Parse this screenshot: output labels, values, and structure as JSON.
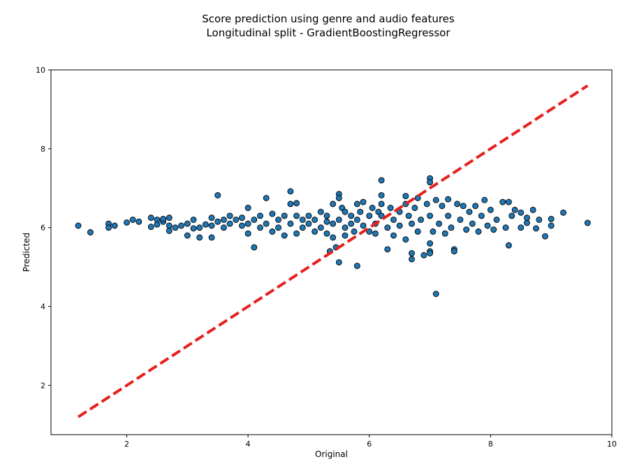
{
  "chart_data": {
    "type": "scatter",
    "title": "Score prediction using genre and audio features",
    "subtitle": "Longitudinal split - GradientBoostingRegressor",
    "xlabel": "Original",
    "ylabel": "Predicted",
    "xlim": [
      0.75,
      10.0
    ],
    "ylim": [
      0.75,
      10.0
    ],
    "xticks": [
      2,
      4,
      6,
      8,
      10
    ],
    "yticks": [
      2,
      4,
      6,
      8,
      10
    ],
    "grid": false,
    "colors": {
      "points_fill": "#1f77b4",
      "points_edge": "#000000",
      "reference_line": "#e5211d"
    },
    "reference_line": {
      "style": "dashed",
      "x": [
        1.2,
        9.6
      ],
      "y": [
        1.2,
        9.6
      ]
    },
    "series": [
      {
        "type": "scatter",
        "points": [
          [
            1.2,
            6.05
          ],
          [
            1.4,
            5.88
          ],
          [
            1.7,
            6.1
          ],
          [
            1.7,
            6.0
          ],
          [
            1.8,
            6.05
          ],
          [
            2.0,
            6.13
          ],
          [
            2.1,
            6.2
          ],
          [
            2.2,
            6.15
          ],
          [
            2.4,
            6.25
          ],
          [
            2.4,
            6.02
          ],
          [
            2.5,
            6.2
          ],
          [
            2.5,
            6.08
          ],
          [
            2.6,
            6.15
          ],
          [
            2.6,
            6.22
          ],
          [
            2.7,
            6.25
          ],
          [
            2.7,
            5.92
          ],
          [
            2.7,
            6.05
          ],
          [
            2.8,
            6.0
          ],
          [
            2.9,
            6.05
          ],
          [
            3.0,
            6.1
          ],
          [
            3.0,
            5.8
          ],
          [
            3.1,
            5.98
          ],
          [
            3.1,
            6.2
          ],
          [
            3.2,
            5.75
          ],
          [
            3.2,
            6.0
          ],
          [
            3.3,
            6.08
          ],
          [
            3.4,
            6.05
          ],
          [
            3.4,
            5.75
          ],
          [
            3.4,
            6.25
          ],
          [
            3.5,
            6.82
          ],
          [
            3.5,
            6.15
          ],
          [
            3.6,
            6.0
          ],
          [
            3.6,
            6.2
          ],
          [
            3.7,
            6.3
          ],
          [
            3.7,
            6.1
          ],
          [
            3.8,
            6.2
          ],
          [
            3.9,
            6.05
          ],
          [
            3.9,
            6.25
          ],
          [
            4.0,
            6.5
          ],
          [
            4.0,
            5.85
          ],
          [
            4.0,
            6.1
          ],
          [
            4.1,
            5.5
          ],
          [
            4.1,
            6.2
          ],
          [
            4.2,
            6.0
          ],
          [
            4.2,
            6.3
          ],
          [
            4.3,
            6.75
          ],
          [
            4.3,
            6.1
          ],
          [
            4.4,
            5.9
          ],
          [
            4.4,
            6.35
          ],
          [
            4.5,
            6.2
          ],
          [
            4.5,
            6.0
          ],
          [
            4.6,
            6.3
          ],
          [
            4.6,
            5.8
          ],
          [
            4.7,
            6.92
          ],
          [
            4.7,
            6.6
          ],
          [
            4.7,
            6.1
          ],
          [
            4.8,
            6.62
          ],
          [
            4.8,
            5.85
          ],
          [
            4.8,
            6.3
          ],
          [
            4.9,
            6.2
          ],
          [
            4.9,
            6.0
          ],
          [
            5.0,
            6.1
          ],
          [
            5.0,
            6.3
          ],
          [
            5.1,
            5.9
          ],
          [
            5.1,
            6.2
          ],
          [
            5.2,
            6.0
          ],
          [
            5.2,
            6.4
          ],
          [
            5.3,
            6.15
          ],
          [
            5.3,
            5.85
          ],
          [
            5.3,
            6.3
          ],
          [
            5.35,
            5.4
          ],
          [
            5.4,
            6.1
          ],
          [
            5.4,
            6.6
          ],
          [
            5.4,
            5.75
          ],
          [
            5.45,
            5.5
          ],
          [
            5.5,
            6.85
          ],
          [
            5.5,
            6.75
          ],
          [
            5.5,
            5.12
          ],
          [
            5.5,
            6.2
          ],
          [
            5.55,
            6.5
          ],
          [
            5.6,
            6.0
          ],
          [
            5.6,
            5.8
          ],
          [
            5.6,
            6.4
          ],
          [
            5.7,
            6.3
          ],
          [
            5.7,
            6.1
          ],
          [
            5.75,
            5.9
          ],
          [
            5.8,
            6.6
          ],
          [
            5.8,
            5.03
          ],
          [
            5.8,
            6.2
          ],
          [
            5.85,
            6.4
          ],
          [
            5.9,
            6.05
          ],
          [
            5.9,
            6.65
          ],
          [
            6.0,
            6.3
          ],
          [
            6.0,
            5.9
          ],
          [
            6.05,
            6.5
          ],
          [
            6.1,
            6.1
          ],
          [
            6.1,
            5.85
          ],
          [
            6.15,
            6.4
          ],
          [
            6.2,
            7.2
          ],
          [
            6.2,
            6.82
          ],
          [
            6.2,
            6.6
          ],
          [
            6.2,
            6.3
          ],
          [
            6.3,
            5.45
          ],
          [
            6.3,
            6.0
          ],
          [
            6.35,
            6.5
          ],
          [
            6.4,
            6.2
          ],
          [
            6.4,
            5.8
          ],
          [
            6.5,
            6.4
          ],
          [
            6.5,
            6.05
          ],
          [
            6.6,
            5.7
          ],
          [
            6.6,
            6.6
          ],
          [
            6.6,
            6.8
          ],
          [
            6.65,
            6.3
          ],
          [
            6.7,
            5.35
          ],
          [
            6.7,
            5.2
          ],
          [
            6.7,
            6.1
          ],
          [
            6.75,
            6.5
          ],
          [
            6.8,
            6.75
          ],
          [
            6.8,
            5.9
          ],
          [
            6.85,
            6.2
          ],
          [
            6.9,
            5.3
          ],
          [
            6.95,
            6.6
          ],
          [
            7.0,
            7.25
          ],
          [
            7.0,
            7.15
          ],
          [
            7.0,
            5.6
          ],
          [
            7.0,
            5.4
          ],
          [
            7.0,
            5.35
          ],
          [
            7.0,
            6.3
          ],
          [
            7.05,
            5.9
          ],
          [
            7.1,
            4.32
          ],
          [
            7.1,
            6.7
          ],
          [
            7.15,
            6.1
          ],
          [
            7.2,
            6.55
          ],
          [
            7.25,
            5.85
          ],
          [
            7.3,
            6.72
          ],
          [
            7.3,
            6.3
          ],
          [
            7.35,
            6.0
          ],
          [
            7.4,
            5.45
          ],
          [
            7.4,
            5.4
          ],
          [
            7.45,
            6.6
          ],
          [
            7.5,
            6.2
          ],
          [
            7.55,
            6.55
          ],
          [
            7.6,
            5.95
          ],
          [
            7.65,
            6.4
          ],
          [
            7.7,
            6.1
          ],
          [
            7.75,
            6.55
          ],
          [
            7.8,
            5.9
          ],
          [
            7.85,
            6.3
          ],
          [
            7.9,
            6.7
          ],
          [
            7.95,
            6.05
          ],
          [
            8.0,
            6.45
          ],
          [
            8.05,
            5.95
          ],
          [
            8.1,
            6.2
          ],
          [
            8.2,
            6.65
          ],
          [
            8.25,
            6.0
          ],
          [
            8.3,
            6.65
          ],
          [
            8.3,
            5.55
          ],
          [
            8.35,
            6.3
          ],
          [
            8.4,
            6.45
          ],
          [
            8.5,
            6.0
          ],
          [
            8.5,
            6.38
          ],
          [
            8.6,
            6.12
          ],
          [
            8.6,
            6.25
          ],
          [
            8.7,
            6.45
          ],
          [
            8.75,
            5.98
          ],
          [
            8.8,
            6.2
          ],
          [
            8.9,
            5.78
          ],
          [
            9.0,
            6.22
          ],
          [
            9.0,
            6.05
          ],
          [
            9.2,
            6.38
          ],
          [
            9.6,
            6.12
          ]
        ]
      }
    ]
  }
}
